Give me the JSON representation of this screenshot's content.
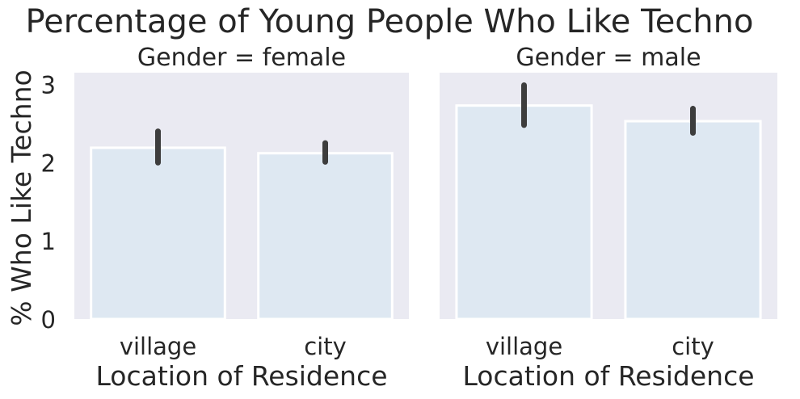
{
  "chart_data": {
    "type": "bar",
    "title": "Percentage of Young People Who Like Techno",
    "ylabel": "% Who Like Techno",
    "ylim": [
      0,
      3.15
    ],
    "yticks": [
      0,
      1,
      2,
      3
    ],
    "grid": false,
    "colors": {
      "background": "#EAEAF2",
      "bar": "#DEE8F2",
      "bar_edge": "#FFFFFF",
      "error_bar": "#3D3D3D",
      "text": "#262626"
    },
    "panels": [
      {
        "title": "Gender = female",
        "xlabel": "Location of Residence",
        "categories": [
          "village",
          "city"
        ],
        "values": [
          2.19,
          2.12
        ],
        "ci_low": [
          2.0,
          2.01
        ],
        "ci_high": [
          2.4,
          2.25
        ]
      },
      {
        "title": "Gender = male",
        "xlabel": "Location of Residence",
        "categories": [
          "village",
          "city"
        ],
        "values": [
          2.73,
          2.53
        ],
        "ci_low": [
          2.48,
          2.38
        ],
        "ci_high": [
          2.99,
          2.69
        ]
      }
    ]
  }
}
